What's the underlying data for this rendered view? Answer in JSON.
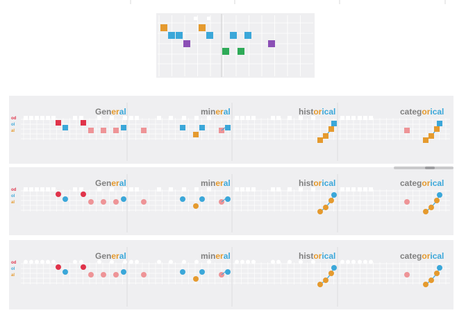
{
  "colors": {
    "orange": "#e59a2e",
    "blue": "#3ba7d9",
    "purple": "#8b4fb5",
    "green": "#2eaa57",
    "red": "#e0334a",
    "pink": "#ee9497",
    "panel": "#efeff1",
    "grid": "#ffffff",
    "stem": "#7d7d7d",
    "gray_text": "#808080"
  },
  "words": [
    "General",
    "mineral",
    "historical",
    "categorical"
  ],
  "word_parts": [
    [
      {
        "t": "Gen",
        "c": "gray"
      },
      {
        "t": "er",
        "c": "orange"
      },
      {
        "t": "al",
        "c": "blue"
      }
    ],
    [
      {
        "t": "min",
        "c": "gray"
      },
      {
        "t": "er",
        "c": "orange"
      },
      {
        "t": "al",
        "c": "blue"
      }
    ],
    [
      {
        "t": "hist",
        "c": "gray"
      },
      {
        "t": "or",
        "c": "orange"
      },
      {
        "t": "ical",
        "c": "blue"
      }
    ],
    [
      {
        "t": "categ",
        "c": "gray"
      },
      {
        "t": "or",
        "c": "orange"
      },
      {
        "t": "ical",
        "c": "blue"
      }
    ]
  ],
  "row_labels": [
    "od",
    "ol",
    "al"
  ],
  "top_panel": {
    "description_colors": [
      "orange",
      "blue",
      "purple",
      "green"
    ]
  },
  "rows": [
    {
      "shape": "square"
    },
    {
      "shape": "circle-square"
    },
    {
      "shape": "circle"
    }
  ]
}
